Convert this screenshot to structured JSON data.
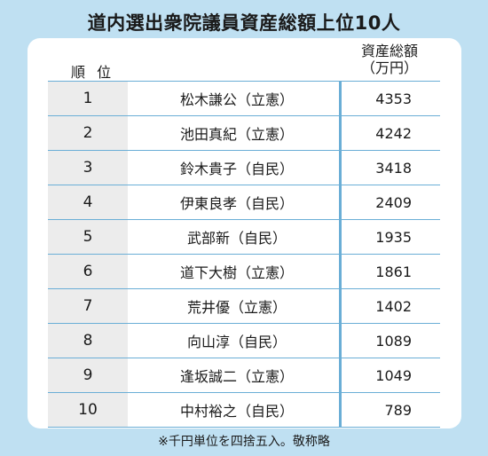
{
  "chart_data": {
    "type": "table",
    "title": "道内選出衆院議員資産総額上位10人",
    "columns": [
      "順 位",
      "",
      "資産総額",
      "（万円）"
    ],
    "rows": [
      {
        "rank": "1",
        "name": "松木謙公（立憲）",
        "value": "4353"
      },
      {
        "rank": "2",
        "name": "池田真紀（立憲）",
        "value": "4242"
      },
      {
        "rank": "3",
        "name": "鈴木貴子（自民）",
        "value": "3418"
      },
      {
        "rank": "4",
        "name": "伊東良孝（自民）",
        "value": "2409"
      },
      {
        "rank": "5",
        "name": "武部新（自民）",
        "value": "1935"
      },
      {
        "rank": "6",
        "name": "道下大樹（立憲）",
        "value": "1861"
      },
      {
        "rank": "7",
        "name": "荒井優（立憲）",
        "value": "1402"
      },
      {
        "rank": "8",
        "name": "向山淳（自民）",
        "value": "1089"
      },
      {
        "rank": "9",
        "name": "逢坂誠二（立憲）",
        "value": "1049"
      },
      {
        "rank": "10",
        "name": "中村裕之（自民）",
        "value": "789"
      }
    ],
    "note": "※千円単位を四捨五入。敬称略"
  },
  "colors": {
    "background": "#bfe0f2",
    "rule": "#6aaed6",
    "rank_cell": "#ececec"
  }
}
